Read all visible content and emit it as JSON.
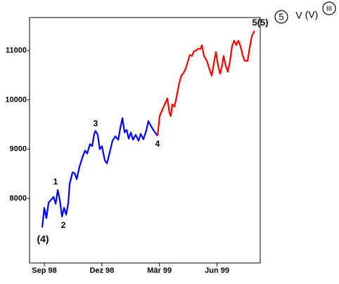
{
  "chart_data": {
    "type": "line",
    "xlim": [
      -0.77,
      11.25
    ],
    "ylim": [
      6690,
      11670
    ],
    "xticks": [
      {
        "value": 0,
        "label": "Sep 98"
      },
      {
        "value": 3,
        "label": "Dez 98"
      },
      {
        "value": 6,
        "label": "Mär 99"
      },
      {
        "value": 9,
        "label": "Jun 99"
      }
    ],
    "yticks": [
      {
        "value": 8000,
        "label": "8000"
      },
      {
        "value": 9000,
        "label": "9000"
      },
      {
        "value": 10000,
        "label": "10000"
      },
      {
        "value": 11000,
        "label": "11000"
      }
    ],
    "series": [
      {
        "color": "#0000ff",
        "x": [
          -0.11,
          0,
          0.11,
          0.22,
          0.33,
          0.48,
          0.59,
          0.7,
          0.81,
          0.92,
          1.03,
          1.14,
          1.25,
          1.32,
          1.47,
          1.58,
          1.69,
          1.83,
          2.01,
          2.12,
          2.23,
          2.38,
          2.49,
          2.6,
          2.67,
          2.78,
          2.89,
          3.0,
          3.15,
          3.26,
          3.41,
          3.55,
          3.7,
          3.85,
          3.96,
          4.07,
          4.18,
          4.29,
          4.4,
          4.51,
          4.62,
          4.76,
          4.91,
          5.02,
          5.16,
          5.31,
          5.42,
          5.57,
          5.71,
          5.9
        ],
        "values": [
          7410,
          7810,
          7600,
          7910,
          7960,
          8030,
          7890,
          8170,
          7960,
          7630,
          7810,
          7670,
          7910,
          8290,
          8530,
          8510,
          8390,
          8640,
          8860,
          8970,
          8910,
          9100,
          9060,
          9310,
          9370,
          9290,
          9000,
          9060,
          8770,
          8710,
          8940,
          9170,
          9260,
          9190,
          9430,
          9630,
          9340,
          9390,
          9210,
          9340,
          9190,
          9290,
          9170,
          9310,
          9200,
          9370,
          9570,
          9460,
          9370,
          9270
        ]
      },
      {
        "color": "#ff0000",
        "x": [
          5.9,
          6.01,
          6.15,
          6.3,
          6.41,
          6.52,
          6.59,
          6.67,
          6.78,
          6.89,
          7.03,
          7.14,
          7.25,
          7.36,
          7.47,
          7.58,
          7.69,
          7.8,
          7.91,
          8.02,
          8.13,
          8.21,
          8.32,
          8.46,
          8.61,
          8.72,
          8.83,
          8.94,
          9.05,
          9.16,
          9.27,
          9.34,
          9.45,
          9.56,
          9.67,
          9.78,
          9.89,
          10.0,
          10.11,
          10.22,
          10.33,
          10.44,
          10.59,
          10.7,
          10.81,
          10.95
        ],
        "values": [
          9270,
          9670,
          9800,
          9930,
          10030,
          9740,
          9670,
          9910,
          9860,
          10060,
          10340,
          10490,
          10540,
          10630,
          10770,
          10910,
          10890,
          10990,
          11000,
          11040,
          11030,
          11110,
          10890,
          10800,
          10610,
          10490,
          10740,
          10970,
          10700,
          10530,
          10710,
          10890,
          10690,
          10570,
          10770,
          11090,
          11200,
          11110,
          11200,
          11090,
          10910,
          10790,
          10790,
          11060,
          11290,
          11400
        ]
      }
    ],
    "annotations": [
      "(4)",
      "1",
      "2",
      "3",
      "4",
      "5(5)"
    ],
    "wave_degree_labels": [
      "5",
      "V",
      "(V)",
      "III"
    ]
  }
}
